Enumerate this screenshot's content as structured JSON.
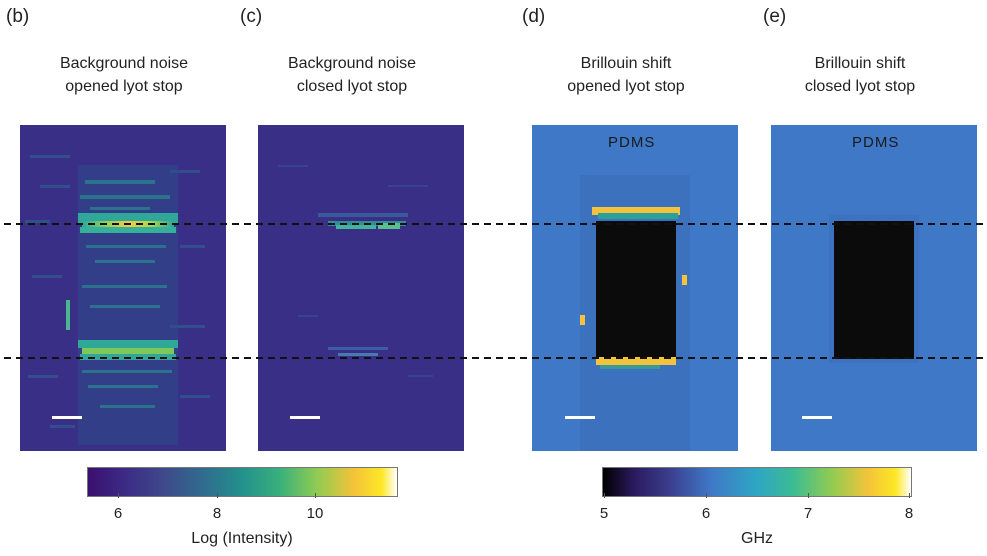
{
  "panels": [
    {
      "letter": "(b)",
      "title_line1": "Background noise",
      "title_line2": "opened lyot stop",
      "label": ""
    },
    {
      "letter": "(c)",
      "title_line1": "Background noise",
      "title_line2": "closed lyot stop",
      "label": ""
    },
    {
      "letter": "(d)",
      "title_line1": "Brillouin shift",
      "title_line2": "opened lyot stop",
      "label": "PDMS"
    },
    {
      "letter": "(e)",
      "title_line1": "Brillouin shift",
      "title_line2": "closed lyot stop",
      "label": "PDMS"
    }
  ],
  "colorbars": [
    {
      "label": "Log (Intensity)",
      "ticks": [
        "6",
        "8",
        "10"
      ],
      "tick_values": [
        6,
        8,
        10
      ],
      "range": [
        5.4,
        11.6
      ]
    },
    {
      "label": "GHz",
      "ticks": [
        "5",
        "6",
        "7",
        "8"
      ],
      "tick_values": [
        5,
        6,
        7,
        8
      ],
      "range": [
        5,
        8
      ]
    }
  ],
  "colors": {
    "viridis_dark": "#3b0f70",
    "panel_background": "#3a2f86",
    "brillouin_background": "#3f78c6",
    "void": "#0b0b0b",
    "scalebar": "#ffffff",
    "dashed_line": "#111111"
  }
}
